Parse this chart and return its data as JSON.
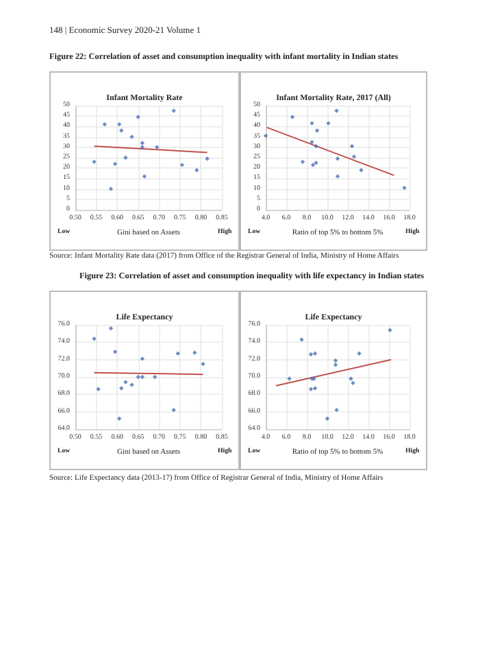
{
  "chart_data": [
    {
      "type": "scatter",
      "title": "Infant Mortality Rate",
      "xlabel": "Gini based on Assets",
      "annotations": [
        "Low",
        "High",
        "148 | Economic Survey 2020-21   Volume 1",
        "Figure 22: Correlation of asset and consumption inequality with infant mortality in Indian states"
      ],
      "grid": true,
      "xlim": [
        0.5,
        0.85
      ],
      "xticks": [
        {
          "value": 0.5,
          "label": "0.50"
        },
        {
          "value": 0.55,
          "label": "0.55"
        },
        {
          "value": 0.6,
          "label": "0.60"
        },
        {
          "value": 0.65,
          "label": "0.65"
        },
        {
          "value": 0.7,
          "label": "0.70"
        },
        {
          "value": 0.75,
          "label": "0.75"
        },
        {
          "value": 0.8,
          "label": "0.80"
        },
        {
          "value": 0.85,
          "label": "0.85"
        }
      ],
      "ylim": [
        0,
        50
      ],
      "yticks": [
        0,
        5,
        10,
        15,
        20,
        25,
        30,
        35,
        40,
        45,
        50
      ],
      "series": [
        {
          "marker": "diamond",
          "color": "#4a6fb5",
          "x": [
            0.545,
            0.57,
            0.585,
            0.595,
            0.605,
            0.61,
            0.62,
            0.635,
            0.65,
            0.66,
            0.66,
            0.665,
            0.695,
            0.735,
            0.755,
            0.79,
            0.815
          ],
          "values": [
            23,
            41,
            10,
            22,
            41,
            38,
            25,
            35,
            44.5,
            32,
            30,
            16,
            30,
            47.5,
            21.5,
            19,
            24.5
          ]
        },
        {
          "type": "line",
          "marker": "none",
          "color": "#c0504d",
          "x": [
            0.545,
            0.815
          ],
          "values": [
            30.5,
            27.5
          ]
        }
      ]
    },
    {
      "type": "scatter",
      "title": "Infant Mortality Rate, 2017 (All)",
      "xlabel": "Ratio of top 5% to bottom 5%",
      "annotations": [
        "Low",
        "High",
        "Source: Infant Mortality Rate data (2017) from Office of the Registrar General of India, Ministry of Home Affairs"
      ],
      "grid": true,
      "xlim": [
        4,
        18
      ],
      "xticks": [
        {
          "value": 4,
          "label": "4.0"
        },
        {
          "value": 6,
          "label": "6.0"
        },
        {
          "value": 8,
          "label": "8.0"
        },
        {
          "value": 10,
          "label": "10.0"
        },
        {
          "value": 12,
          "label": "12.0"
        },
        {
          "value": 14,
          "label": "14.0"
        },
        {
          "value": 16,
          "label": "16.0"
        },
        {
          "value": 18,
          "label": "18.0"
        }
      ],
      "ylim": [
        0,
        50
      ],
      "yticks": [
        0,
        5,
        10,
        15,
        20,
        25,
        30,
        35,
        40,
        45,
        50
      ],
      "series": [
        {
          "marker": "diamond",
          "color": "#4a6fb5",
          "x": [
            4.0,
            6.6,
            7.6,
            8.5,
            8.6,
            8.5,
            8.9,
            9.0,
            8.9,
            10.1,
            10.9,
            11.0,
            11.0,
            12.4,
            12.6,
            13.3,
            17.5
          ],
          "values": [
            35.5,
            44.5,
            23,
            41.5,
            21.5,
            32.5,
            22.5,
            38,
            30.5,
            41.5,
            47.5,
            24.5,
            16,
            30.5,
            25.5,
            19,
            10.5
          ]
        },
        {
          "type": "line",
          "marker": "none",
          "color": "#c0504d",
          "x": [
            4.1,
            16.5
          ],
          "values": [
            39.5,
            16.5
          ]
        }
      ]
    },
    {
      "type": "scatter",
      "title": "Life Expectancy",
      "xlabel": "Gini based on Assets",
      "annotations": [
        "Low",
        "High",
        "Figure 23: Correlation of asset and consumption inequality with life expectancy in Indian states"
      ],
      "grid": true,
      "xlim": [
        0.5,
        0.85
      ],
      "xticks": [
        {
          "value": 0.5,
          "label": "0.50"
        },
        {
          "value": 0.55,
          "label": "0.55"
        },
        {
          "value": 0.6,
          "label": "0.60"
        },
        {
          "value": 0.65,
          "label": "0.65"
        },
        {
          "value": 0.7,
          "label": "0.70"
        },
        {
          "value": 0.75,
          "label": "0.75"
        },
        {
          "value": 0.8,
          "label": "0.80"
        },
        {
          "value": 0.85,
          "label": "0.85"
        }
      ],
      "ylim": [
        64,
        76
      ],
      "yticks": [
        {
          "value": 64,
          "label": "64.0"
        },
        {
          "value": 66,
          "label": "66.0"
        },
        {
          "value": 68,
          "label": "68.0"
        },
        {
          "value": 70,
          "label": "70.0"
        },
        {
          "value": 72,
          "label": "72.0"
        },
        {
          "value": 74,
          "label": "74.0"
        },
        {
          "value": 76,
          "label": "76.0"
        }
      ],
      "series": [
        {
          "marker": "diamond",
          "color": "#4a6fb5",
          "x": [
            0.545,
            0.585,
            0.555,
            0.595,
            0.605,
            0.61,
            0.62,
            0.635,
            0.65,
            0.66,
            0.66,
            0.69,
            0.735,
            0.745,
            0.785,
            0.805
          ],
          "values": [
            74.4,
            75.6,
            68.6,
            72.9,
            65.2,
            68.7,
            69.4,
            69.1,
            70,
            70,
            72.1,
            70,
            66.2,
            72.7,
            72.8,
            71.5
          ]
        },
        {
          "type": "line",
          "marker": "none",
          "color": "#c0504d",
          "x": [
            0.545,
            0.805
          ],
          "values": [
            70.5,
            70.3
          ]
        }
      ]
    },
    {
      "type": "scatter",
      "title": "Life Expectancy",
      "xlabel": "Ratio of top 5% to bottom 5%",
      "annotations": [
        "Low",
        "High",
        "Source: Life Expectancy data (2013-17) from Office of Registrar General of India, Ministry of Home Affairs"
      ],
      "grid": true,
      "xlim": [
        4,
        18
      ],
      "xticks": [
        {
          "value": 4,
          "label": "4.0"
        },
        {
          "value": 6,
          "label": "6.0"
        },
        {
          "value": 8,
          "label": "8.0"
        },
        {
          "value": 10,
          "label": "10.0"
        },
        {
          "value": 12,
          "label": "12.0"
        },
        {
          "value": 14,
          "label": "14.0"
        },
        {
          "value": 16,
          "label": "16.0"
        },
        {
          "value": 18,
          "label": "18.0"
        }
      ],
      "ylim": [
        64,
        76
      ],
      "yticks": [
        {
          "value": 64,
          "label": "64.0"
        },
        {
          "value": 66,
          "label": "66.0"
        },
        {
          "value": 68,
          "label": "68.0"
        },
        {
          "value": 70,
          "label": "70.0"
        },
        {
          "value": 72,
          "label": "72.0"
        },
        {
          "value": 74,
          "label": "74.0"
        },
        {
          "value": 76,
          "label": "76.0"
        }
      ],
      "series": [
        {
          "marker": "diamond",
          "color": "#4a6fb5",
          "x": [
            6.3,
            7.5,
            8.4,
            8.8,
            8.4,
            8.8,
            8.5,
            8.7,
            10.8,
            10.8,
            10.0,
            10.9,
            12.3,
            12.5,
            13.1,
            16.1
          ],
          "values": [
            69.8,
            74.3,
            72.6,
            72.7,
            68.6,
            68.7,
            69.8,
            69.8,
            71.9,
            71.4,
            65.2,
            66.2,
            69.8,
            69.3,
            72.7,
            75.4
          ]
        },
        {
          "type": "line",
          "marker": "none",
          "color": "#c0504d",
          "x": [
            5.0,
            16.2
          ],
          "values": [
            69,
            72
          ]
        }
      ]
    }
  ]
}
